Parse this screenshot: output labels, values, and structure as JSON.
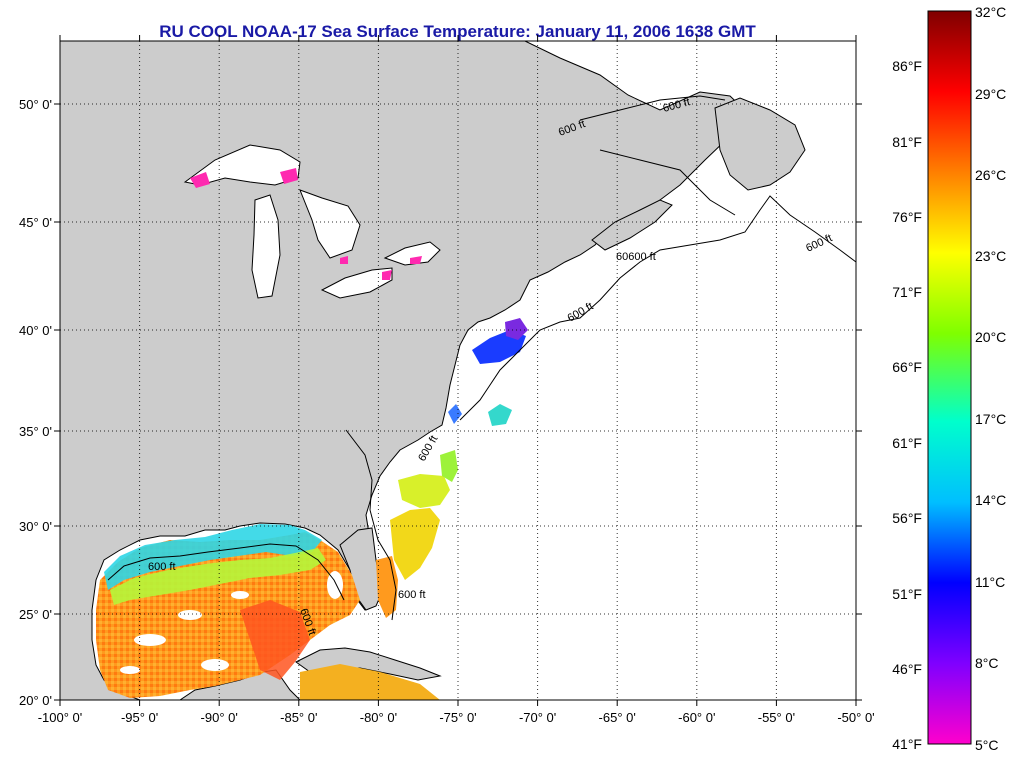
{
  "title": "RU COOL  NOAA-17  Sea Surface Temperature:  January 11, 2006 1638 GMT",
  "map": {
    "lon_ticks": [
      "-100° 0'",
      "-95° 0'",
      "-90° 0'",
      "-85° 0'",
      "-80° 0'",
      "-75° 0'",
      "-70° 0'",
      "-65° 0'",
      "-60° 0'",
      "-55° 0'",
      "-50° 0'"
    ],
    "lat_ticks": [
      "50° 0'",
      "45° 0'",
      "40° 0'",
      "35° 0'",
      "30° 0'",
      "25° 0'",
      "20° 0'"
    ],
    "contour_label": "600 ft",
    "contour_label_double": "60600 ft",
    "land_color": "#cccccc",
    "water_color": "#ffffff"
  },
  "colorbar": {
    "celsius_labels": [
      "32°C",
      "29°C",
      "26°C",
      "23°C",
      "20°C",
      "17°C",
      "14°C",
      "11°C",
      "8°C",
      "5°C"
    ],
    "fahrenheit_labels": [
      "86°F",
      "81°F",
      "76°F",
      "71°F",
      "66°F",
      "61°F",
      "56°F",
      "51°F",
      "46°F",
      "41°F"
    ],
    "colors_top_to_bottom": [
      "#7f0000",
      "#ff0000",
      "#ff7f00",
      "#ffff00",
      "#7fff00",
      "#00ffcc",
      "#00bfff",
      "#0000ff",
      "#7f00ff",
      "#ff00cc"
    ]
  }
}
